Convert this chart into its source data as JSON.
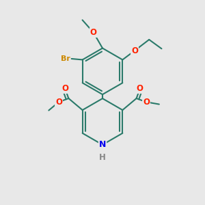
{
  "background_color": "#e8e8e8",
  "bond_color": "#2a7a6a",
  "bond_width": 1.5,
  "atom_colors": {
    "O": "#ff2200",
    "N": "#0000ee",
    "Br": "#cc8800",
    "H": "#888888"
  },
  "font_size_atom": 8.5,
  "font_size_H": 7.5
}
